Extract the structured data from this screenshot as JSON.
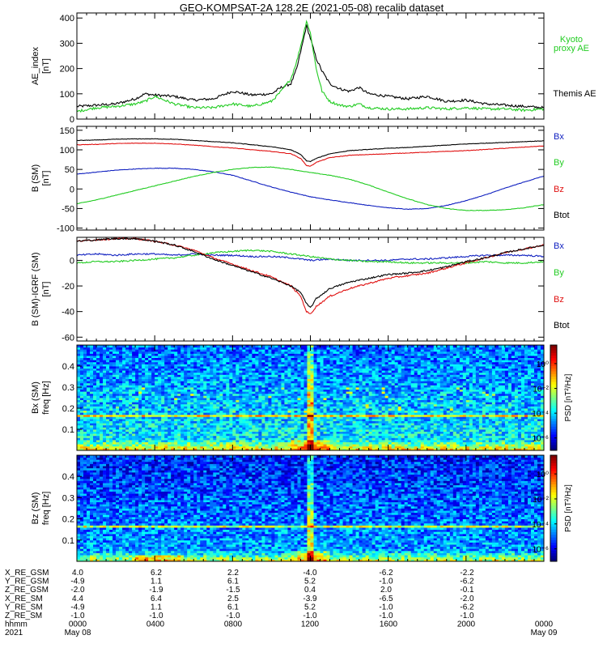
{
  "title": "GEO-KOMPSAT-2A 128.2E (2021-05-08) recalib dataset",
  "colors": {
    "black": "#000000",
    "green": "#22cc22",
    "blue": "#1020c0",
    "red": "#e01010"
  },
  "chart_data": [
    {
      "type": "line",
      "panel": "ae",
      "ylabel_1": "AE_index",
      "ylabel_2": "[nT]",
      "ylim": [
        0,
        420
      ],
      "yticks": [
        0,
        100,
        200,
        300,
        400
      ],
      "xlim": [
        0,
        24
      ],
      "series": [
        {
          "name": "Themis AE",
          "color_key": "black",
          "x": [
            0,
            1,
            2,
            3,
            3.5,
            4,
            5,
            6,
            7,
            8,
            9,
            10,
            10.5,
            11,
            11.3,
            11.6,
            11.8,
            12,
            12.3,
            12.6,
            13,
            13.5,
            14,
            14.5,
            15,
            16,
            17,
            18,
            19,
            20,
            21,
            22,
            23,
            24
          ],
          "y": [
            50,
            55,
            60,
            80,
            100,
            95,
            90,
            75,
            80,
            110,
            95,
            100,
            125,
            140,
            200,
            300,
            370,
            320,
            240,
            190,
            140,
            120,
            110,
            125,
            100,
            90,
            80,
            90,
            70,
            75,
            60,
            55,
            50,
            45
          ]
        },
        {
          "name": "Kyoto proxy AE",
          "color_key": "green",
          "x": [
            0,
            1,
            2,
            3,
            3.5,
            4,
            5,
            6,
            7,
            8,
            9,
            10,
            10.5,
            11,
            11.3,
            11.6,
            11.8,
            12,
            12.3,
            12.6,
            13,
            13.5,
            14,
            14.5,
            15,
            16,
            17,
            18,
            19,
            20,
            21,
            22,
            23,
            24
          ],
          "y": [
            30,
            45,
            50,
            60,
            70,
            90,
            60,
            45,
            45,
            60,
            50,
            70,
            110,
            160,
            230,
            320,
            390,
            340,
            200,
            110,
            70,
            55,
            50,
            60,
            45,
            40,
            40,
            45,
            40,
            45,
            40,
            40,
            35,
            40
          ]
        }
      ],
      "legend": [
        "Kyoto",
        "proxy AE",
        "Themis AE"
      ]
    },
    {
      "type": "line",
      "panel": "b_sm",
      "ylabel_1": "B  (SM)",
      "ylabel_2": "[nT]",
      "ylim": [
        -105,
        160
      ],
      "yticks": [
        -100,
        -50,
        0,
        50,
        100,
        150
      ],
      "xlim": [
        0,
        24
      ],
      "series": [
        {
          "name": "Bx",
          "color_key": "blue",
          "x": [
            0,
            1,
            2,
            3,
            4,
            5,
            6,
            7,
            8,
            9,
            10,
            11,
            12,
            13,
            14,
            15,
            16,
            17,
            18,
            19,
            20,
            21,
            22,
            23,
            24
          ],
          "y": [
            38,
            43,
            48,
            51,
            53,
            53,
            50,
            44,
            35,
            20,
            5,
            -8,
            -20,
            -28,
            -35,
            -42,
            -48,
            -52,
            -50,
            -42,
            -30,
            -15,
            2,
            18,
            33
          ]
        },
        {
          "name": "By",
          "color_key": "green",
          "x": [
            0,
            1,
            2,
            3,
            4,
            5,
            6,
            7,
            8,
            9,
            10,
            11,
            12,
            13,
            14,
            15,
            16,
            17,
            18,
            19,
            20,
            21,
            22,
            23,
            24
          ],
          "y": [
            -38,
            -28,
            -16,
            -4,
            8,
            20,
            32,
            42,
            50,
            55,
            56,
            50,
            42,
            35,
            25,
            10,
            -8,
            -25,
            -40,
            -50,
            -55,
            -55,
            -53,
            -48,
            -40
          ]
        },
        {
          "name": "Bz",
          "color_key": "red",
          "x": [
            0,
            1,
            2,
            3,
            4,
            5,
            6,
            7,
            8,
            9,
            10,
            11,
            11.5,
            11.8,
            12,
            12.3,
            13,
            14,
            15,
            16,
            17,
            18,
            19,
            20,
            21,
            22,
            23,
            24
          ],
          "y": [
            113,
            114,
            116,
            117,
            117,
            115,
            112,
            108,
            105,
            100,
            96,
            90,
            78,
            60,
            58,
            68,
            80,
            86,
            88,
            90,
            92,
            94,
            96,
            98,
            101,
            104,
            107,
            110
          ]
        },
        {
          "name": "Btot",
          "color_key": "black",
          "x": [
            0,
            1,
            2,
            3,
            4,
            5,
            6,
            7,
            8,
            9,
            10,
            11,
            11.5,
            11.8,
            12,
            12.3,
            13,
            14,
            15,
            16,
            17,
            18,
            19,
            20,
            21,
            22,
            23,
            24
          ],
          "y": [
            124,
            125,
            127,
            128,
            128,
            127,
            124,
            121,
            118,
            113,
            108,
            100,
            88,
            72,
            70,
            78,
            90,
            98,
            101,
            104,
            106,
            109,
            112,
            115,
            117,
            119,
            121,
            123
          ]
        }
      ],
      "legend": [
        "Bx",
        "By",
        "Bz",
        "Btot"
      ]
    },
    {
      "type": "line",
      "panel": "b_minus_igrf",
      "ylabel_1": "B (SM)-IGRF (SM)",
      "ylabel_2": "[nT]",
      "ylim": [
        -63,
        18
      ],
      "yticks": [
        -60,
        -40,
        -20,
        0
      ],
      "xlim": [
        0,
        24
      ],
      "series": [
        {
          "name": "Bx",
          "color_key": "blue",
          "x": [
            0,
            1,
            2,
            3,
            4,
            5,
            6,
            7,
            8,
            9,
            10,
            11,
            12,
            13,
            14,
            15,
            16,
            17,
            18,
            19,
            20,
            21,
            22,
            23,
            24
          ],
          "y": [
            4,
            5,
            4,
            5,
            5,
            4,
            5,
            4,
            4,
            3,
            3,
            2,
            0,
            1,
            0,
            0,
            0,
            1,
            1,
            2,
            3,
            4,
            4,
            4,
            3
          ]
        },
        {
          "name": "By",
          "color_key": "green",
          "x": [
            0,
            1,
            2,
            3,
            4,
            5,
            6,
            7,
            8,
            9,
            10,
            11,
            12,
            13,
            14,
            15,
            16,
            17,
            18,
            19,
            20,
            21,
            22,
            23,
            24
          ],
          "y": [
            -2,
            -1,
            -1,
            0,
            1,
            2,
            4,
            6,
            7,
            8,
            7,
            5,
            3,
            1,
            0,
            -1,
            -1,
            -2,
            -2,
            -2,
            -2,
            -1,
            -2,
            -2,
            -1
          ]
        },
        {
          "name": "Bz",
          "color_key": "red",
          "x": [
            0,
            1,
            2,
            3,
            4,
            5,
            6,
            7,
            8,
            9,
            10,
            11,
            11.5,
            11.8,
            12,
            12.3,
            13,
            14,
            15,
            16,
            17,
            18,
            19,
            20,
            21,
            22,
            23,
            24
          ],
          "y": [
            15,
            16,
            17,
            17,
            15,
            12,
            8,
            2,
            -3,
            -8,
            -13,
            -20,
            -28,
            -40,
            -42,
            -36,
            -28,
            -22,
            -18,
            -14,
            -12,
            -10,
            -6,
            -2,
            2,
            6,
            9,
            12
          ]
        },
        {
          "name": "Btot",
          "color_key": "black",
          "x": [
            0,
            1,
            2,
            3,
            4,
            5,
            6,
            7,
            8,
            9,
            10,
            11,
            11.5,
            11.8,
            12,
            12.3,
            13,
            14,
            15,
            16,
            17,
            18,
            19,
            20,
            21,
            22,
            23,
            24
          ],
          "y": [
            15,
            16,
            17,
            17,
            15,
            12,
            7,
            1,
            -4,
            -9,
            -14,
            -20,
            -25,
            -34,
            -37,
            -30,
            -22,
            -17,
            -14,
            -11,
            -10,
            -8,
            -5,
            -1,
            2,
            6,
            9,
            12
          ]
        }
      ],
      "legend": [
        "Bx",
        "By",
        "Bz",
        "Btot"
      ]
    },
    {
      "type": "heatmap",
      "panel": "spec_bx",
      "ylabel_1": "Bx  (SM)",
      "ylabel_2": "freq  [Hz]",
      "ylim": [
        0,
        0.5
      ],
      "yticks": [
        0.1,
        0.2,
        0.3,
        0.4
      ],
      "xlim": [
        0,
        24
      ],
      "colorbar_label": "PSD  [nT²/Hz]",
      "colorbar_ticks": [
        "10⁰",
        "10⁻²",
        "10⁻⁴",
        "10⁻⁶"
      ],
      "colorbar_range_log10": [
        -7,
        1.5
      ],
      "features": {
        "line_freq": 0.166,
        "burst_hour": 12.0
      }
    },
    {
      "type": "heatmap",
      "panel": "spec_bz",
      "ylabel_1": "Bz  (SM)",
      "ylabel_2": "freq  [Hz]",
      "ylim": [
        0,
        0.5
      ],
      "yticks": [
        0.1,
        0.2,
        0.3,
        0.4
      ],
      "xlim": [
        0,
        24
      ],
      "colorbar_label": "PSD  [nT²/Hz]",
      "colorbar_ticks": [
        "10⁰",
        "10⁻²",
        "10⁻⁴",
        "10⁻⁶"
      ],
      "colorbar_range_log10": [
        -7,
        1.5
      ],
      "features": {
        "line_freq": 0.166,
        "burst_hour": 12.0
      }
    }
  ],
  "ephemeris": {
    "rows": [
      {
        "label": "X_RE_GSM",
        "values": [
          "4.0",
          "6.2",
          "2.2",
          "-4.0",
          "-6.2",
          "-2.2"
        ]
      },
      {
        "label": "Y_RE_GSM",
        "values": [
          "-4.9",
          "1.1",
          "6.1",
          "5.2",
          "-1.0",
          "-6.2"
        ]
      },
      {
        "label": "Z_RE_GSM",
        "values": [
          "-2.0",
          "-1.9",
          "-1.5",
          "0.4",
          "2.0",
          "-0.1"
        ]
      },
      {
        "label": "X_RE_SM",
        "values": [
          "4.4",
          "6.4",
          "2.5",
          "-3.9",
          "-6.5",
          "-2.0"
        ]
      },
      {
        "label": "Y_RE_SM",
        "values": [
          "-4.9",
          "1.1",
          "6.1",
          "5.2",
          "-1.0",
          "-6.2"
        ]
      },
      {
        "label": "Z_RE_SM",
        "values": [
          "-1.0",
          "-1.0",
          "-1.0",
          "-1.0",
          "-1.0",
          "-1.0"
        ]
      }
    ],
    "hhmm_label": "hhmm",
    "hhmm_values": [
      "0000",
      "0400",
      "0800",
      "1200",
      "1600",
      "2000",
      "0000"
    ],
    "year_label": "2021",
    "date_start": "May 08",
    "date_end": "May 09"
  }
}
